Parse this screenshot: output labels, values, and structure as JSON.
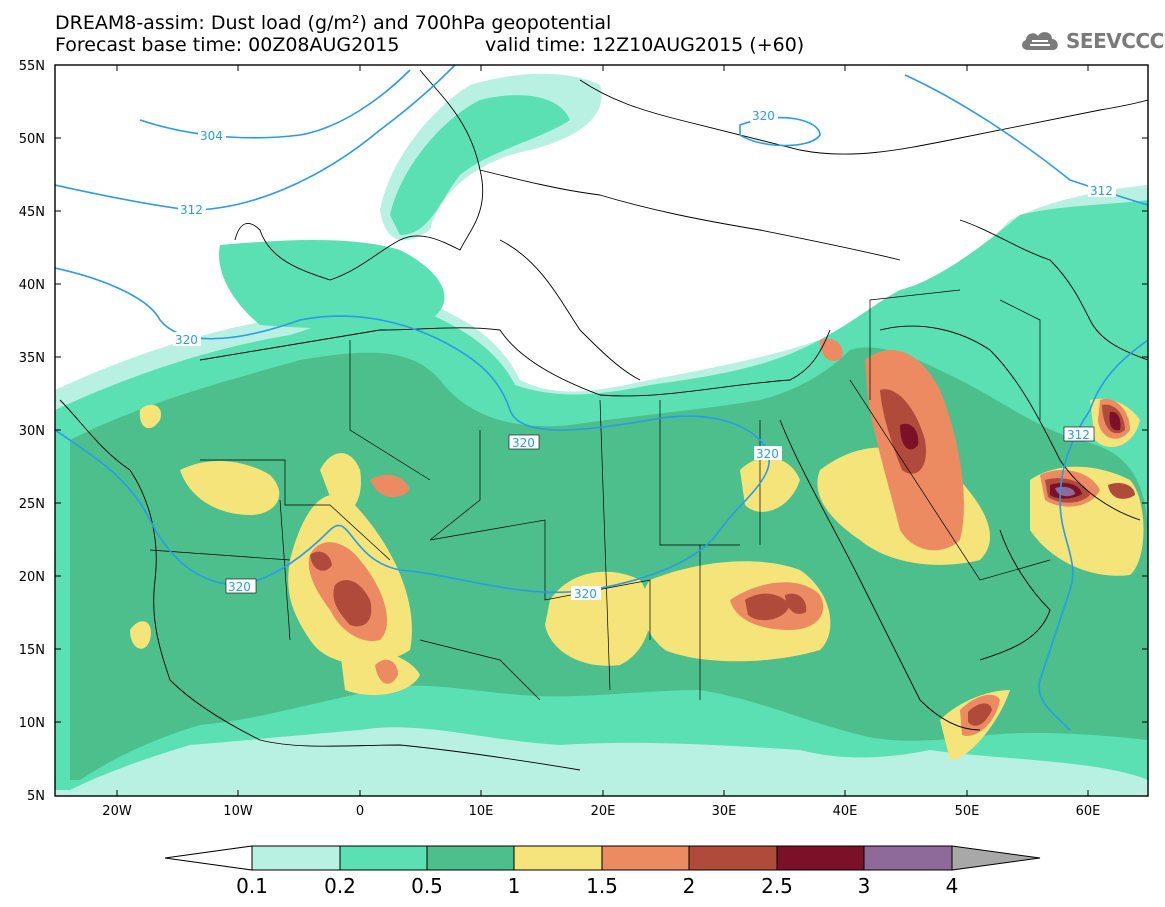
{
  "title_line1": "DREAM8-assim: Dust load (g/m²) and 700hPa geopotential",
  "title_line2": "Forecast base time: 00Z08AUG2015",
  "valid_time": "valid time: 12Z10AUG2015 (+60)",
  "logo": {
    "text": "SEEVCCC",
    "icon": "cloud-icon"
  },
  "axes": {
    "lat_labels": [
      "55N",
      "50N",
      "45N",
      "40N",
      "35N",
      "30N",
      "25N",
      "20N",
      "15N",
      "10N",
      "5N"
    ],
    "lon_labels": [
      "20W",
      "10W",
      "0",
      "10E",
      "20E",
      "30E",
      "40E",
      "50E",
      "60E"
    ]
  },
  "contours": [
    "304",
    "312",
    "320",
    "320",
    "320",
    "320",
    "320",
    "320",
    "312",
    "312"
  ],
  "colorbar": {
    "labels": [
      "0.1",
      "0.2",
      "0.5",
      "1",
      "1.5",
      "2",
      "2.5",
      "3",
      "4"
    ],
    "colors": [
      "#ffffff",
      "#b8f0e2",
      "#5ae0b3",
      "#4dbf8c",
      "#f5e47a",
      "#ec8a62",
      "#b04b3c",
      "#7c1029",
      "#8e6a9a",
      "#a8a8a8"
    ]
  },
  "palette": {
    "light": "#b8f0e2",
    "medium": "#5ae0b3",
    "dark": "#4dbf8c",
    "yellow": "#f5e47a",
    "orange": "#ec8a62",
    "brown": "#b04b3c",
    "maroon": "#7c1029",
    "purple": "#8e6a9a",
    "contour": "#2a9be8"
  }
}
